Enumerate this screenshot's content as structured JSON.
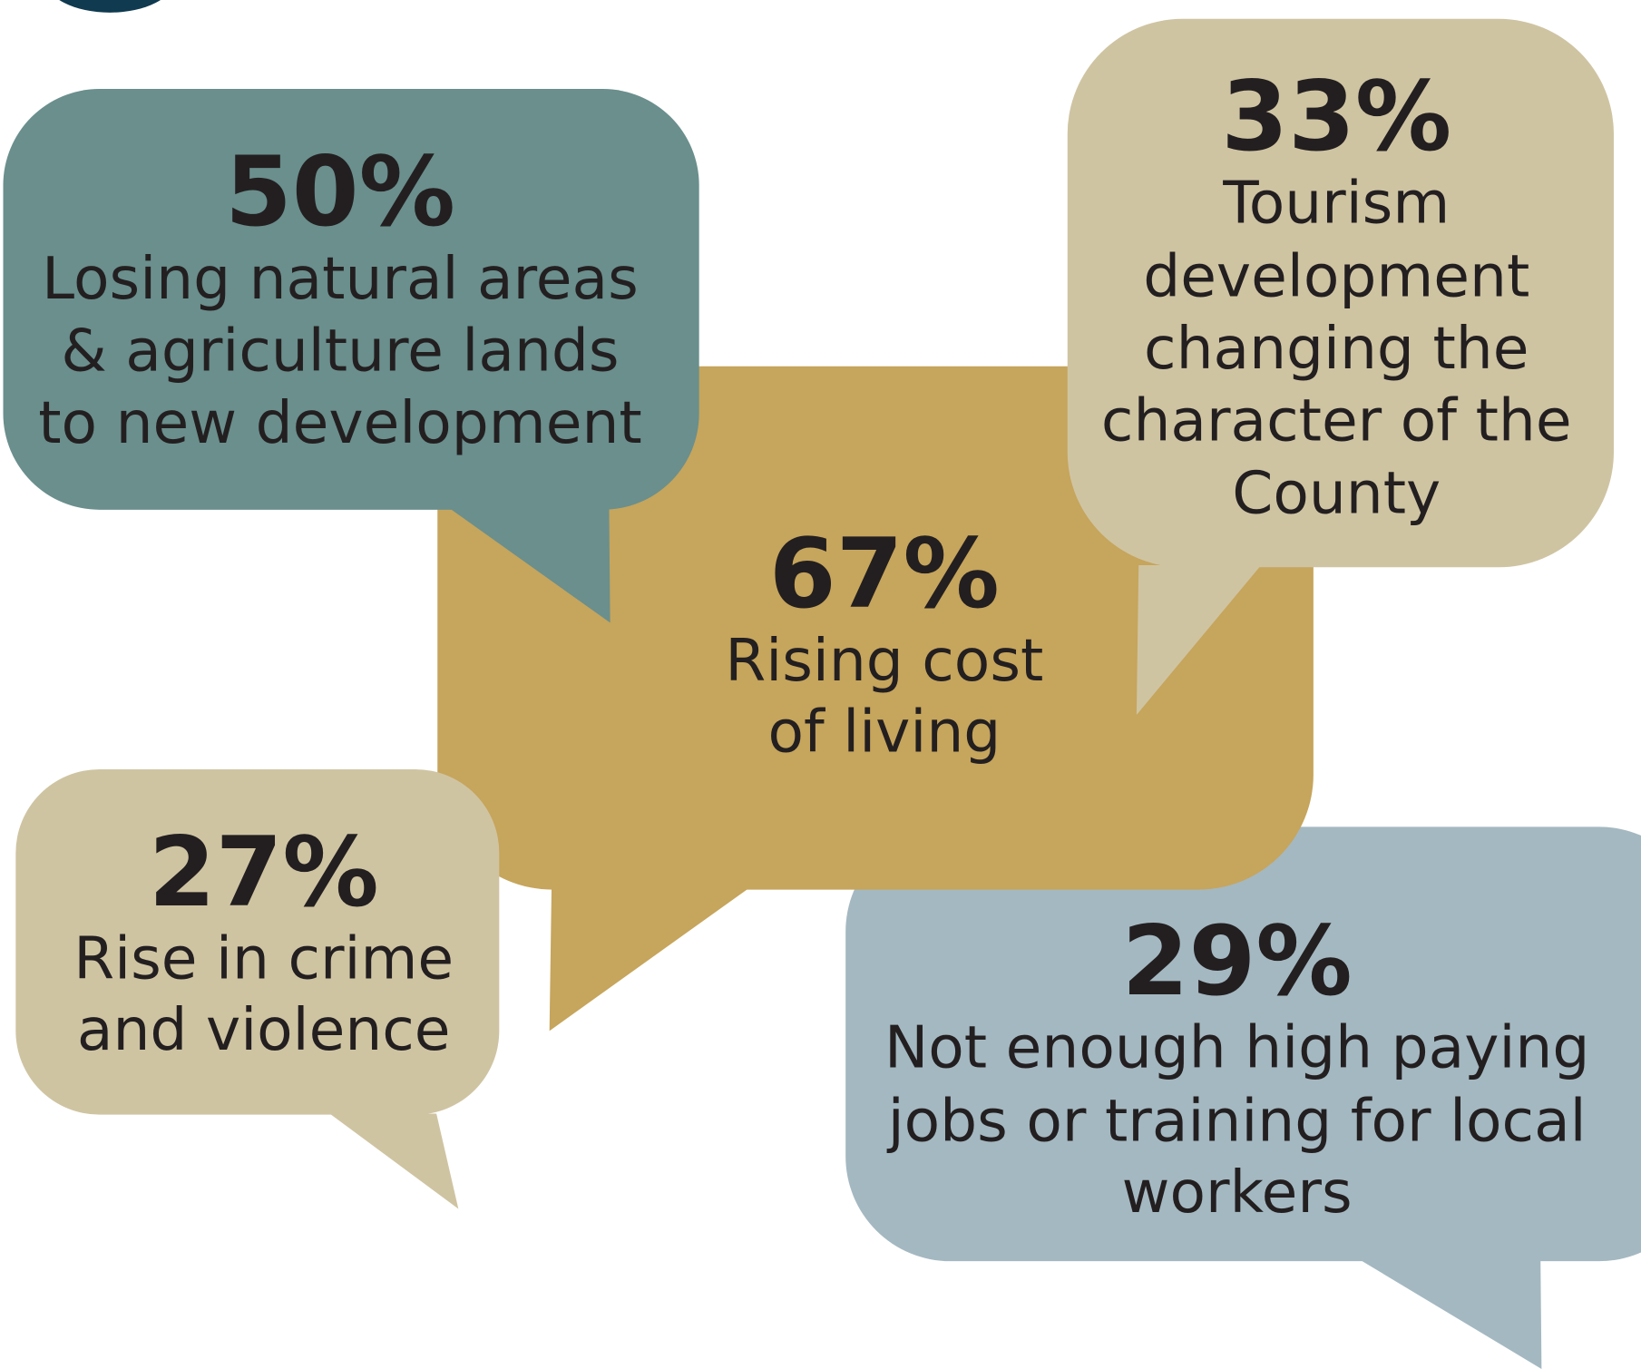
{
  "bubbles": [
    {
      "percent": "29%",
      "lines": [
        "Not enough high paying",
        "jobs or training for local",
        "workers"
      ]
    },
    {
      "percent": "67%",
      "lines": [
        "Rising cost",
        "of living"
      ]
    },
    {
      "percent": "50%",
      "lines": [
        "Losing natural areas",
        "& agriculture lands",
        "to new development"
      ]
    },
    {
      "percent": "33%",
      "lines": [
        "Tourism",
        "development",
        "changing the",
        "character of the",
        "County"
      ]
    },
    {
      "percent": "27%",
      "lines": [
        "Rise in crime",
        "and violence"
      ]
    }
  ]
}
